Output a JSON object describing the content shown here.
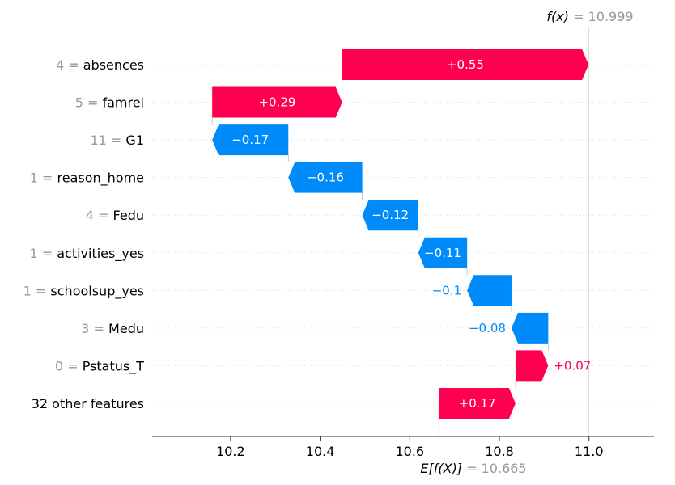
{
  "chart_data": {
    "type": "waterfall",
    "fx": {
      "label": "f(x)",
      "value": "10.999"
    },
    "efx": {
      "label": "E[f(X)]",
      "value": "10.665"
    },
    "base_value": 10.665,
    "output_value": 10.999,
    "xlim": [
      10.025,
      11.145
    ],
    "x_ticks": [
      {
        "value": 10.2,
        "label": "10.2"
      },
      {
        "value": 10.4,
        "label": "10.4"
      },
      {
        "value": 10.6,
        "label": "10.6"
      },
      {
        "value": 10.8,
        "label": "10.8"
      },
      {
        "value": 11.0,
        "label": "11.0"
      }
    ],
    "features": [
      {
        "feature_value": "4",
        "feature": "absences",
        "start": 10.449,
        "end": 10.999,
        "contribution": 0.55,
        "label": "+0.55"
      },
      {
        "feature_value": "5",
        "feature": "famrel",
        "start": 10.159,
        "end": 10.449,
        "contribution": 0.29,
        "label": "+0.29"
      },
      {
        "feature_value": "11",
        "feature": "G1",
        "start": 10.329,
        "end": 10.159,
        "contribution": -0.17,
        "label": "−0.17"
      },
      {
        "feature_value": "1",
        "feature": "reason_home",
        "start": 10.494,
        "end": 10.329,
        "contribution": -0.16,
        "label": "−0.16"
      },
      {
        "feature_value": "4",
        "feature": "Fedu",
        "start": 10.619,
        "end": 10.494,
        "contribution": -0.12,
        "label": "−0.12"
      },
      {
        "feature_value": "1",
        "feature": "activities_yes",
        "start": 10.728,
        "end": 10.619,
        "contribution": -0.11,
        "label": "−0.11"
      },
      {
        "feature_value": "1",
        "feature": "schoolsup_yes",
        "start": 10.827,
        "end": 10.728,
        "contribution": -0.1,
        "label": "−0.1"
      },
      {
        "feature_value": "3",
        "feature": "Medu",
        "start": 10.909,
        "end": 10.827,
        "contribution": -0.08,
        "label": "−0.08"
      },
      {
        "feature_value": "0",
        "feature": "Pstatus_T",
        "start": 10.836,
        "end": 10.909,
        "contribution": 0.07,
        "label": "+0.07"
      },
      {
        "feature_value": "",
        "feature": "32 other features",
        "start": 10.665,
        "end": 10.836,
        "contribution": 0.17,
        "label": "+0.17"
      }
    ],
    "colors": {
      "positive": "#ff0051",
      "negative": "#008bfb",
      "muted": "#999999",
      "grid": "#cccccc"
    }
  }
}
